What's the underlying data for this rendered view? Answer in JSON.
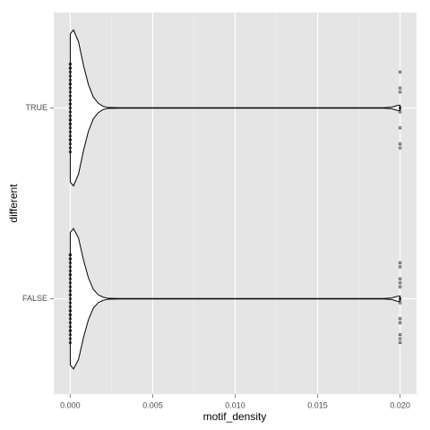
{
  "chart_data": {
    "type": "violin",
    "x_label": "motif_density",
    "y_label": "different",
    "categories": [
      "TRUE",
      "FALSE"
    ],
    "xlim": [
      -0.001,
      0.021
    ],
    "xticks": [
      {
        "value": 0,
        "label": "0.000"
      },
      {
        "value": 0.005,
        "label": "0.005"
      },
      {
        "value": 0.01,
        "label": "0.010"
      },
      {
        "value": 0.015,
        "label": "0.015"
      },
      {
        "value": 0.02,
        "label": "0.020"
      }
    ],
    "grid": true,
    "color": "#000000",
    "fill": "#ffffff",
    "panel_color": "#e5e5e5",
    "density_x": [
      0,
      0.0002,
      0.0005,
      0.0008,
      0.0011,
      0.0014,
      0.0017,
      0.002,
      0.0023,
      0.003,
      0.019,
      0.0195,
      0.0198,
      0.02
    ],
    "violins": [
      {
        "density": [
          0.95,
          1,
          0.85,
          0.55,
          0.3,
          0.14,
          0.06,
          0.02,
          0.005,
          0.003,
          0.003,
          0.01,
          0.03,
          0.035
        ],
        "points": [
          0,
          0,
          0,
          0,
          0,
          0,
          0,
          0,
          0,
          0,
          0,
          0,
          0,
          0,
          0,
          0,
          0,
          0,
          0,
          0,
          0,
          0,
          0,
          0,
          0,
          0,
          0,
          0,
          0,
          0,
          0.02,
          0.02,
          0.02,
          0.02,
          0.02,
          0.02,
          0.02,
          0.02
        ]
      },
      {
        "density": [
          0.85,
          0.9,
          0.78,
          0.5,
          0.27,
          0.12,
          0.05,
          0.02,
          0.005,
          0.003,
          0.003,
          0.01,
          0.03,
          0.035
        ],
        "points": [
          0,
          0,
          0,
          0,
          0,
          0,
          0,
          0,
          0,
          0,
          0,
          0,
          0,
          0,
          0,
          0,
          0,
          0,
          0,
          0,
          0,
          0,
          0,
          0,
          0,
          0,
          0,
          0,
          0,
          0,
          0.02,
          0.02,
          0.02,
          0.02,
          0.02,
          0.02,
          0.02,
          0.02,
          0.02,
          0.02,
          0.02,
          0.02
        ]
      }
    ]
  }
}
